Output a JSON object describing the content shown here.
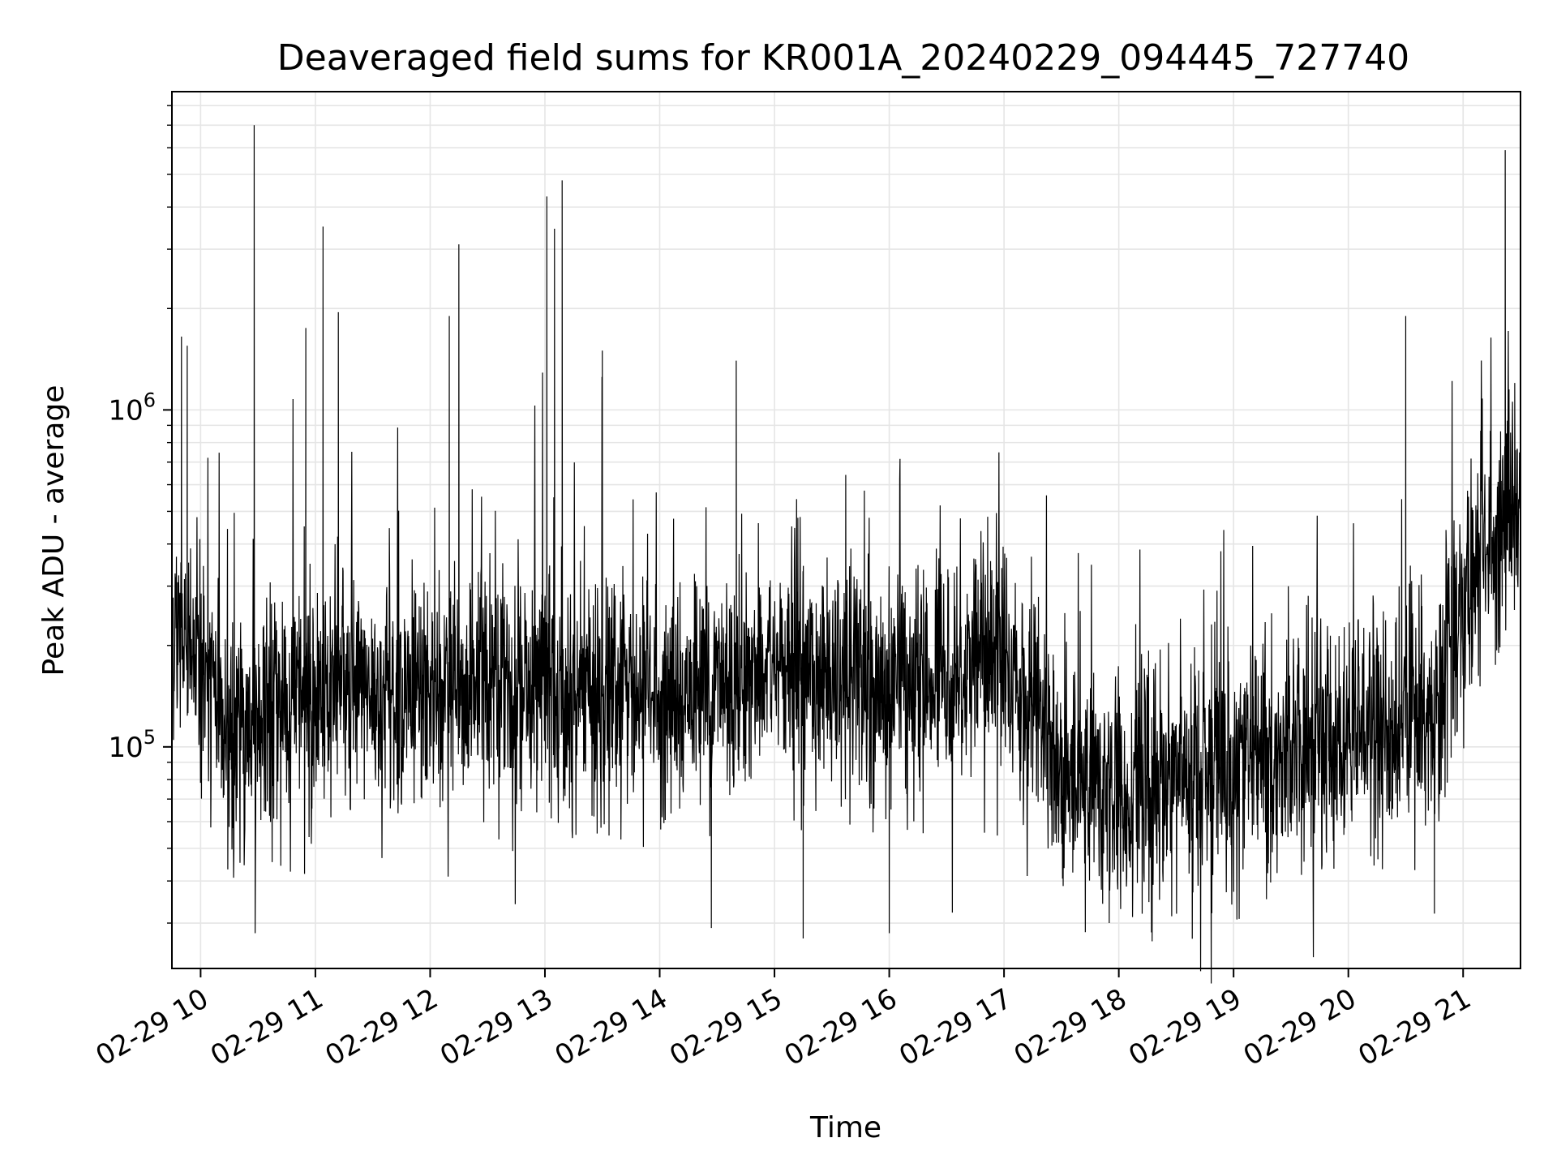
{
  "chart_data": {
    "type": "line",
    "title": "Deaveraged field sums for KR001A_20240229_094445_727740",
    "xlabel": "Time",
    "ylabel": "Peak ADU - average",
    "x_scale": "time",
    "y_scale": "log",
    "xlim": [
      "2024-02-29T09:45:00",
      "2024-02-29T21:30:00"
    ],
    "ylim": [
      22000,
      8800000
    ],
    "grid": {
      "major": true,
      "minor": true,
      "color": "#e5e5e5"
    },
    "line_color": "#000000",
    "x_ticks": [
      {
        "value": "2024-02-29T10:00:00",
        "label": "02-29 10"
      },
      {
        "value": "2024-02-29T11:00:00",
        "label": "02-29 11"
      },
      {
        "value": "2024-02-29T12:00:00",
        "label": "02-29 12"
      },
      {
        "value": "2024-02-29T13:00:00",
        "label": "02-29 13"
      },
      {
        "value": "2024-02-29T14:00:00",
        "label": "02-29 14"
      },
      {
        "value": "2024-02-29T15:00:00",
        "label": "02-29 15"
      },
      {
        "value": "2024-02-29T16:00:00",
        "label": "02-29 16"
      },
      {
        "value": "2024-02-29T17:00:00",
        "label": "02-29 17"
      },
      {
        "value": "2024-02-29T18:00:00",
        "label": "02-29 18"
      },
      {
        "value": "2024-02-29T19:00:00",
        "label": "02-29 19"
      },
      {
        "value": "2024-02-29T20:00:00",
        "label": "02-29 20"
      },
      {
        "value": "2024-02-29T21:00:00",
        "label": "02-29 21"
      }
    ],
    "y_ticks": [
      {
        "value": 100000,
        "base": "10",
        "exp": "5"
      },
      {
        "value": 1000000,
        "base": "10",
        "exp": "6"
      }
    ],
    "series_envelope": {
      "x": [
        "2024-02-29T09:45:00",
        "2024-02-29T10:15:00",
        "2024-02-29T11:00:00",
        "2024-02-29T12:00:00",
        "2024-02-29T13:00:00",
        "2024-02-29T14:00:00",
        "2024-02-29T15:00:00",
        "2024-02-29T16:00:00",
        "2024-02-29T17:00:00",
        "2024-02-29T17:30:00",
        "2024-02-29T18:00:00",
        "2024-02-29T19:00:00",
        "2024-02-29T20:00:00",
        "2024-02-29T20:45:00",
        "2024-02-29T21:00:00",
        "2024-02-29T21:30:00"
      ],
      "median": [
        240000,
        110000,
        140000,
        145000,
        150000,
        135000,
        175000,
        150000,
        190000,
        85000,
        75000,
        90000,
        110000,
        125000,
        260000,
        600000
      ]
    },
    "spikes": [
      {
        "x": "2024-02-29T09:50:00",
        "y": 1650000
      },
      {
        "x": "2024-02-29T09:53:00",
        "y": 1550000
      },
      {
        "x": "2024-02-29T10:28:00",
        "y": 7000000
      },
      {
        "x": "2024-02-29T10:28:30",
        "y": 28000
      },
      {
        "x": "2024-02-29T10:55:00",
        "y": 1750000
      },
      {
        "x": "2024-02-29T11:04:00",
        "y": 3500000
      },
      {
        "x": "2024-02-29T11:12:00",
        "y": 1950000
      },
      {
        "x": "2024-02-29T12:15:00",
        "y": 3100000
      },
      {
        "x": "2024-02-29T12:10:00",
        "y": 1900000
      },
      {
        "x": "2024-02-29T13:01:00",
        "y": 4300000
      },
      {
        "x": "2024-02-29T13:05:00",
        "y": 3450000
      },
      {
        "x": "2024-02-29T13:09:00",
        "y": 4800000
      },
      {
        "x": "2024-02-29T13:30:00",
        "y": 1500000
      },
      {
        "x": "2024-02-29T14:27:00",
        "y": 29000
      },
      {
        "x": "2024-02-29T14:40:00",
        "y": 1400000
      },
      {
        "x": "2024-02-29T15:15:00",
        "y": 27000
      },
      {
        "x": "2024-02-29T16:00:00",
        "y": 28000
      },
      {
        "x": "2024-02-29T17:55:00",
        "y": 30000
      },
      {
        "x": "2024-02-29T20:30:00",
        "y": 1900000
      },
      {
        "x": "2024-02-29T20:45:00",
        "y": 32000
      },
      {
        "x": "2024-02-29T21:22:00",
        "y": 5900000
      },
      {
        "x": "2024-02-29T21:24:00",
        "y": 1150000
      }
    ]
  }
}
